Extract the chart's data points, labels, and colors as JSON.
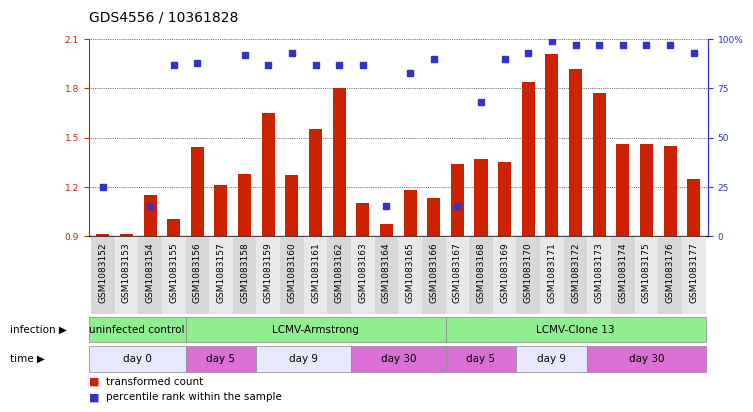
{
  "title": "GDS4556 / 10361828",
  "samples": [
    "GSM1083152",
    "GSM1083153",
    "GSM1083154",
    "GSM1083155",
    "GSM1083156",
    "GSM1083157",
    "GSM1083158",
    "GSM1083159",
    "GSM1083160",
    "GSM1083161",
    "GSM1083162",
    "GSM1083163",
    "GSM1083164",
    "GSM1083165",
    "GSM1083166",
    "GSM1083167",
    "GSM1083168",
    "GSM1083169",
    "GSM1083170",
    "GSM1083171",
    "GSM1083172",
    "GSM1083173",
    "GSM1083174",
    "GSM1083175",
    "GSM1083176",
    "GSM1083177"
  ],
  "red_values": [
    0.91,
    0.91,
    1.15,
    1.0,
    1.44,
    1.21,
    1.28,
    1.65,
    1.27,
    1.55,
    1.8,
    1.1,
    0.97,
    1.18,
    1.13,
    1.34,
    1.37,
    1.35,
    1.84,
    2.01,
    1.92,
    1.77,
    1.46,
    1.46,
    1.45,
    1.25
  ],
  "blue_percentiles": [
    25,
    null,
    15,
    87,
    88,
    null,
    92,
    87,
    93,
    87,
    87,
    87,
    15,
    83,
    90,
    15,
    68,
    90,
    93,
    99,
    97,
    97,
    97,
    97,
    97,
    93
  ],
  "ylim": [
    0.9,
    2.1
  ],
  "yticks_left": [
    0.9,
    1.2,
    1.5,
    1.8,
    2.1
  ],
  "yticks_right": [
    0,
    25,
    50,
    75,
    100
  ],
  "infection_groups": [
    {
      "label": "uninfected control",
      "start": 0,
      "end": 4,
      "color": "#90EE90"
    },
    {
      "label": "LCMV-Armstrong",
      "start": 4,
      "end": 15,
      "color": "#90EE90"
    },
    {
      "label": "LCMV-Clone 13",
      "start": 15,
      "end": 26,
      "color": "#90EE90"
    }
  ],
  "time_groups": [
    {
      "label": "day 0",
      "start": 0,
      "end": 4,
      "color": "#E8E8FF"
    },
    {
      "label": "day 5",
      "start": 4,
      "end": 7,
      "color": "#DA70D6"
    },
    {
      "label": "day 9",
      "start": 7,
      "end": 11,
      "color": "#E8E8FF"
    },
    {
      "label": "day 30",
      "start": 11,
      "end": 15,
      "color": "#DA70D6"
    },
    {
      "label": "day 5",
      "start": 15,
      "end": 18,
      "color": "#DA70D6"
    },
    {
      "label": "day 9",
      "start": 18,
      "end": 21,
      "color": "#E8E8FF"
    },
    {
      "label": "day 30",
      "start": 21,
      "end": 26,
      "color": "#DA70D6"
    }
  ],
  "bar_color": "#CC2200",
  "dot_color": "#3333CC",
  "grid_color": "#000000",
  "bg_color": "#FFFFFF",
  "title_fontsize": 10,
  "tick_fontsize": 6.5,
  "annot_fontsize": 7.5,
  "legend_fontsize": 7.5
}
